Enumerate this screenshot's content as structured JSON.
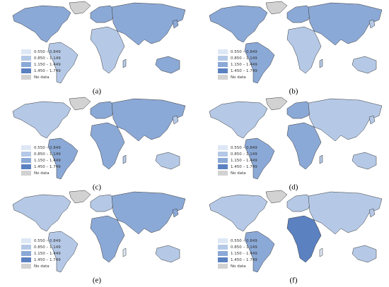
{
  "figure": {
    "legend": [
      "0.550 – 0.849",
      "0.850 – 1.149",
      "1.150 – 1.449",
      "1.450 – 1.749",
      "No data"
    ],
    "panels": [
      "(a)",
      "(b)",
      "(c)",
      "(d)",
      "(e)",
      "(f)"
    ]
  }
}
